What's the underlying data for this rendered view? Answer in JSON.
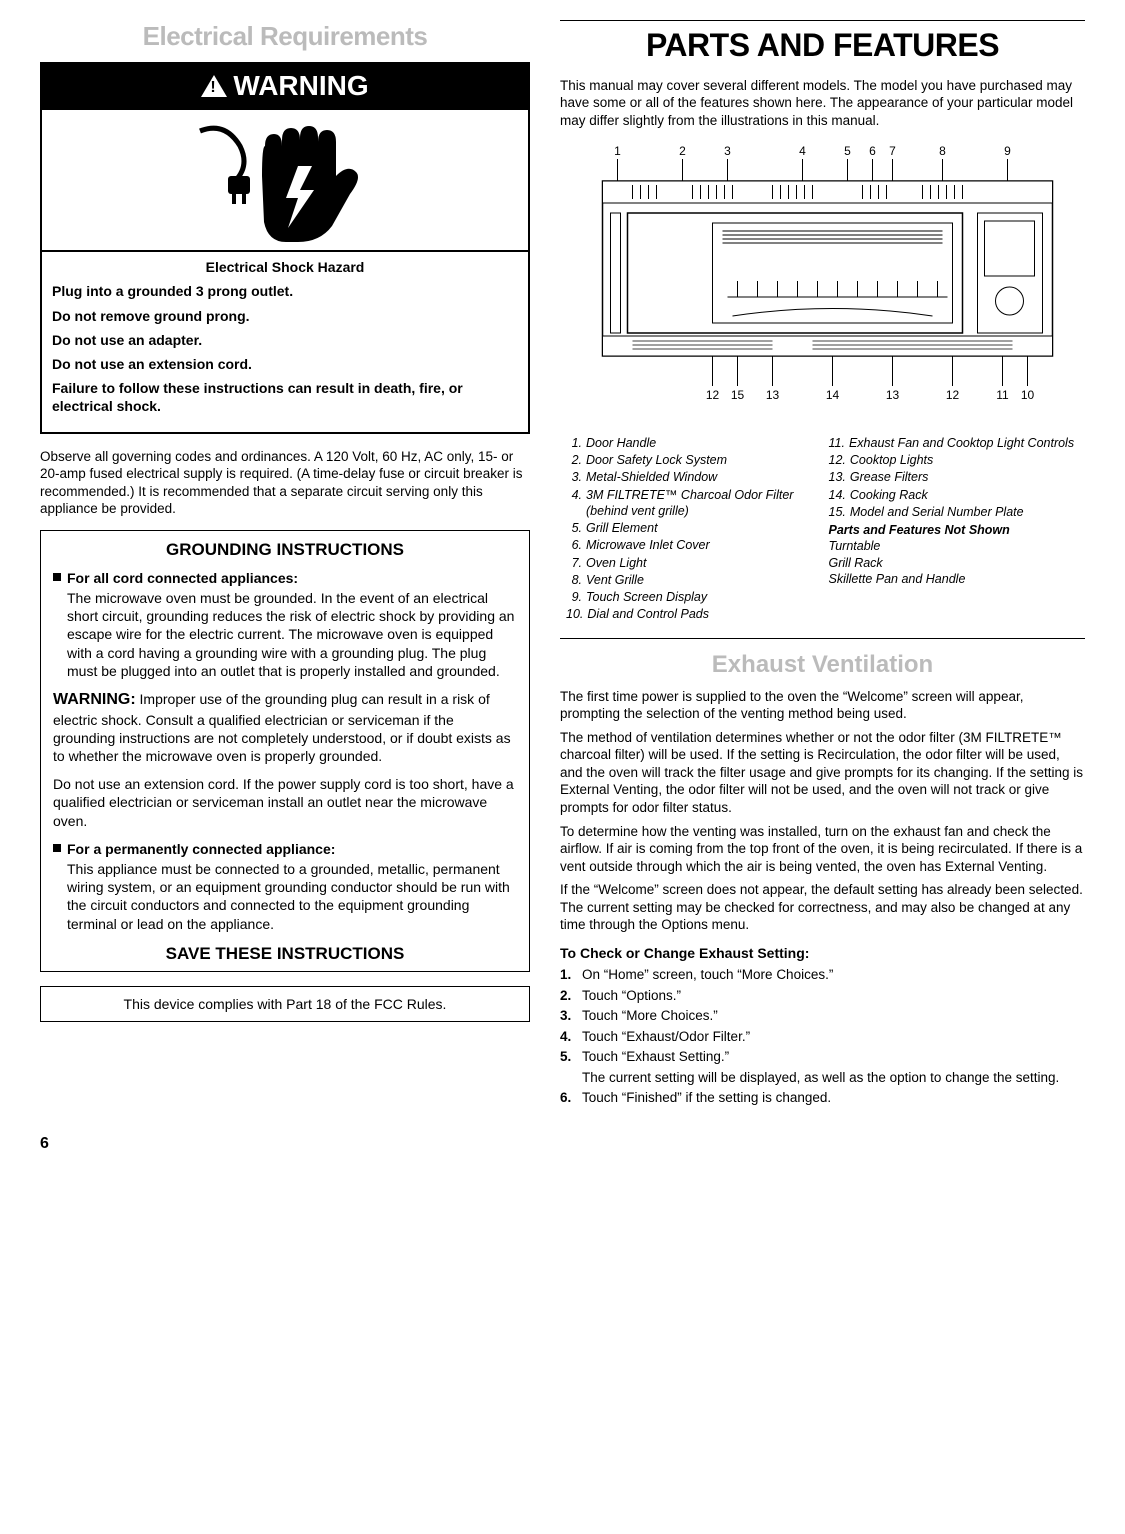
{
  "page_number": "6",
  "left": {
    "section_title": "Electrical Requirements",
    "warning": {
      "header": "WARNING",
      "hazard_label": "Electrical Shock Hazard",
      "lines": [
        "Plug into a grounded 3 prong outlet.",
        "Do not remove ground prong.",
        "Do not use an adapter.",
        "Do not use an extension cord.",
        "Failure to follow these instructions can result in death, fire, or electrical shock."
      ]
    },
    "codes_para": "Observe all governing codes and ordinances. A 120 Volt, 60 Hz, AC only, 15- or 20-amp fused electrical supply is required. (A time-delay fuse or circuit breaker is recommended.) It is recommended that a separate circuit serving only this appliance be provided.",
    "grounding": {
      "title": "GROUNDING INSTRUCTIONS",
      "b1_head": "For all cord connected appliances:",
      "b1_body": "The microwave oven must be grounded. In the event of an electrical short circuit, grounding reduces the risk of electric shock by providing an escape wire for the electric current. The microwave oven is equipped with a cord having a grounding wire with a grounding plug. The plug must be plugged into an outlet that is properly installed and grounded.",
      "warn_label": "WARNING:",
      "warn_body": " Improper use of the grounding plug can result in a risk of electric shock. Consult a qualified electrician or serviceman if the grounding instructions are not completely understood, or if doubt exists as to whether the microwave oven is properly grounded.",
      "no_ext": "Do not use an extension cord. If the power supply cord is too short, have a qualified electrician or serviceman install an outlet near the microwave oven.",
      "b2_head": "For a permanently connected appliance:",
      "b2_body": "This appliance must be connected to a grounded, metallic, permanent wiring system, or an equipment grounding conductor should be run with the circuit conductors and connected to the equipment grounding terminal or lead on the appliance.",
      "save": "SAVE THESE INSTRUCTIONS"
    },
    "fcc": "This device complies with Part 18 of the FCC Rules."
  },
  "right": {
    "parts_title": "PARTS AND FEATURES",
    "intro": "This manual may cover several different models. The model you have purchased may have some or all of the features shown here. The appearance of your particular model may differ slightly from the illustrations in this manual.",
    "diagram": {
      "top_labels": [
        "1",
        "2",
        "3",
        "4",
        "5",
        "6",
        "7",
        "8",
        "9"
      ],
      "bottom_labels": [
        "12",
        "15",
        "13",
        "14",
        "13",
        "12",
        "11",
        "10"
      ]
    },
    "legend_left": [
      {
        "n": "1.",
        "t": "Door Handle"
      },
      {
        "n": "2.",
        "t": "Door Safety Lock System"
      },
      {
        "n": "3.",
        "t": "Metal-Shielded Window"
      },
      {
        "n": "4.",
        "t": "3M FILTRETE™ Charcoal Odor Filter (behind vent grille)"
      },
      {
        "n": "5.",
        "t": "Grill Element"
      },
      {
        "n": "6.",
        "t": "Microwave Inlet Cover"
      },
      {
        "n": "7.",
        "t": "Oven Light"
      },
      {
        "n": "8.",
        "t": "Vent Grille"
      },
      {
        "n": "9.",
        "t": "Touch Screen Display"
      },
      {
        "n": "10.",
        "t": "Dial and Control Pads"
      }
    ],
    "legend_right": [
      {
        "n": "11.",
        "t": "Exhaust Fan and Cooktop Light Controls"
      },
      {
        "n": "12.",
        "t": "Cooktop Lights"
      },
      {
        "n": "13.",
        "t": "Grease Filters"
      },
      {
        "n": "14.",
        "t": "Cooking Rack"
      },
      {
        "n": "15.",
        "t": "Model and Serial Number Plate"
      }
    ],
    "legend_sub": "Parts and Features Not Shown",
    "legend_extra": [
      "Turntable",
      "Grill Rack",
      "Skillette Pan and Handle"
    ],
    "exhaust": {
      "title": "Exhaust Ventilation",
      "p1": "The first time power is supplied to the oven the “Welcome” screen will appear, prompting the selection of the venting method being used.",
      "p2": "The method of ventilation determines whether or not the odor filter (3M FILTRETE™ charcoal filter) will be used. If the setting is Recirculation, the odor filter will be used, and the oven will track the filter usage and give prompts for its changing. If the setting is External Venting, the odor filter will not be used, and the oven will not track or give prompts for odor filter status.",
      "p3": "To determine how the venting was installed, turn on the exhaust fan and check the airflow. If air is coming from the top front of the oven, it is being recirculated. If there is a vent outside through which the air is being vented, the oven has External Venting.",
      "p4": "If the “Welcome” screen does not appear, the default setting has already been selected. The current setting may be checked for correctness, and may also be changed at any time through the Options menu.",
      "sub": "To Check or Change Exhaust Setting:",
      "steps": [
        "On “Home” screen, touch “More Choices.”",
        "Touch “Options.”",
        "Touch “More Choices.”",
        "Touch “Exhaust/Odor Filter.”",
        "Touch “Exhaust Setting.”",
        "Touch “Finished” if the setting is changed."
      ],
      "step5_note": "The current setting will be displayed, as well as the option to change the setting."
    }
  }
}
